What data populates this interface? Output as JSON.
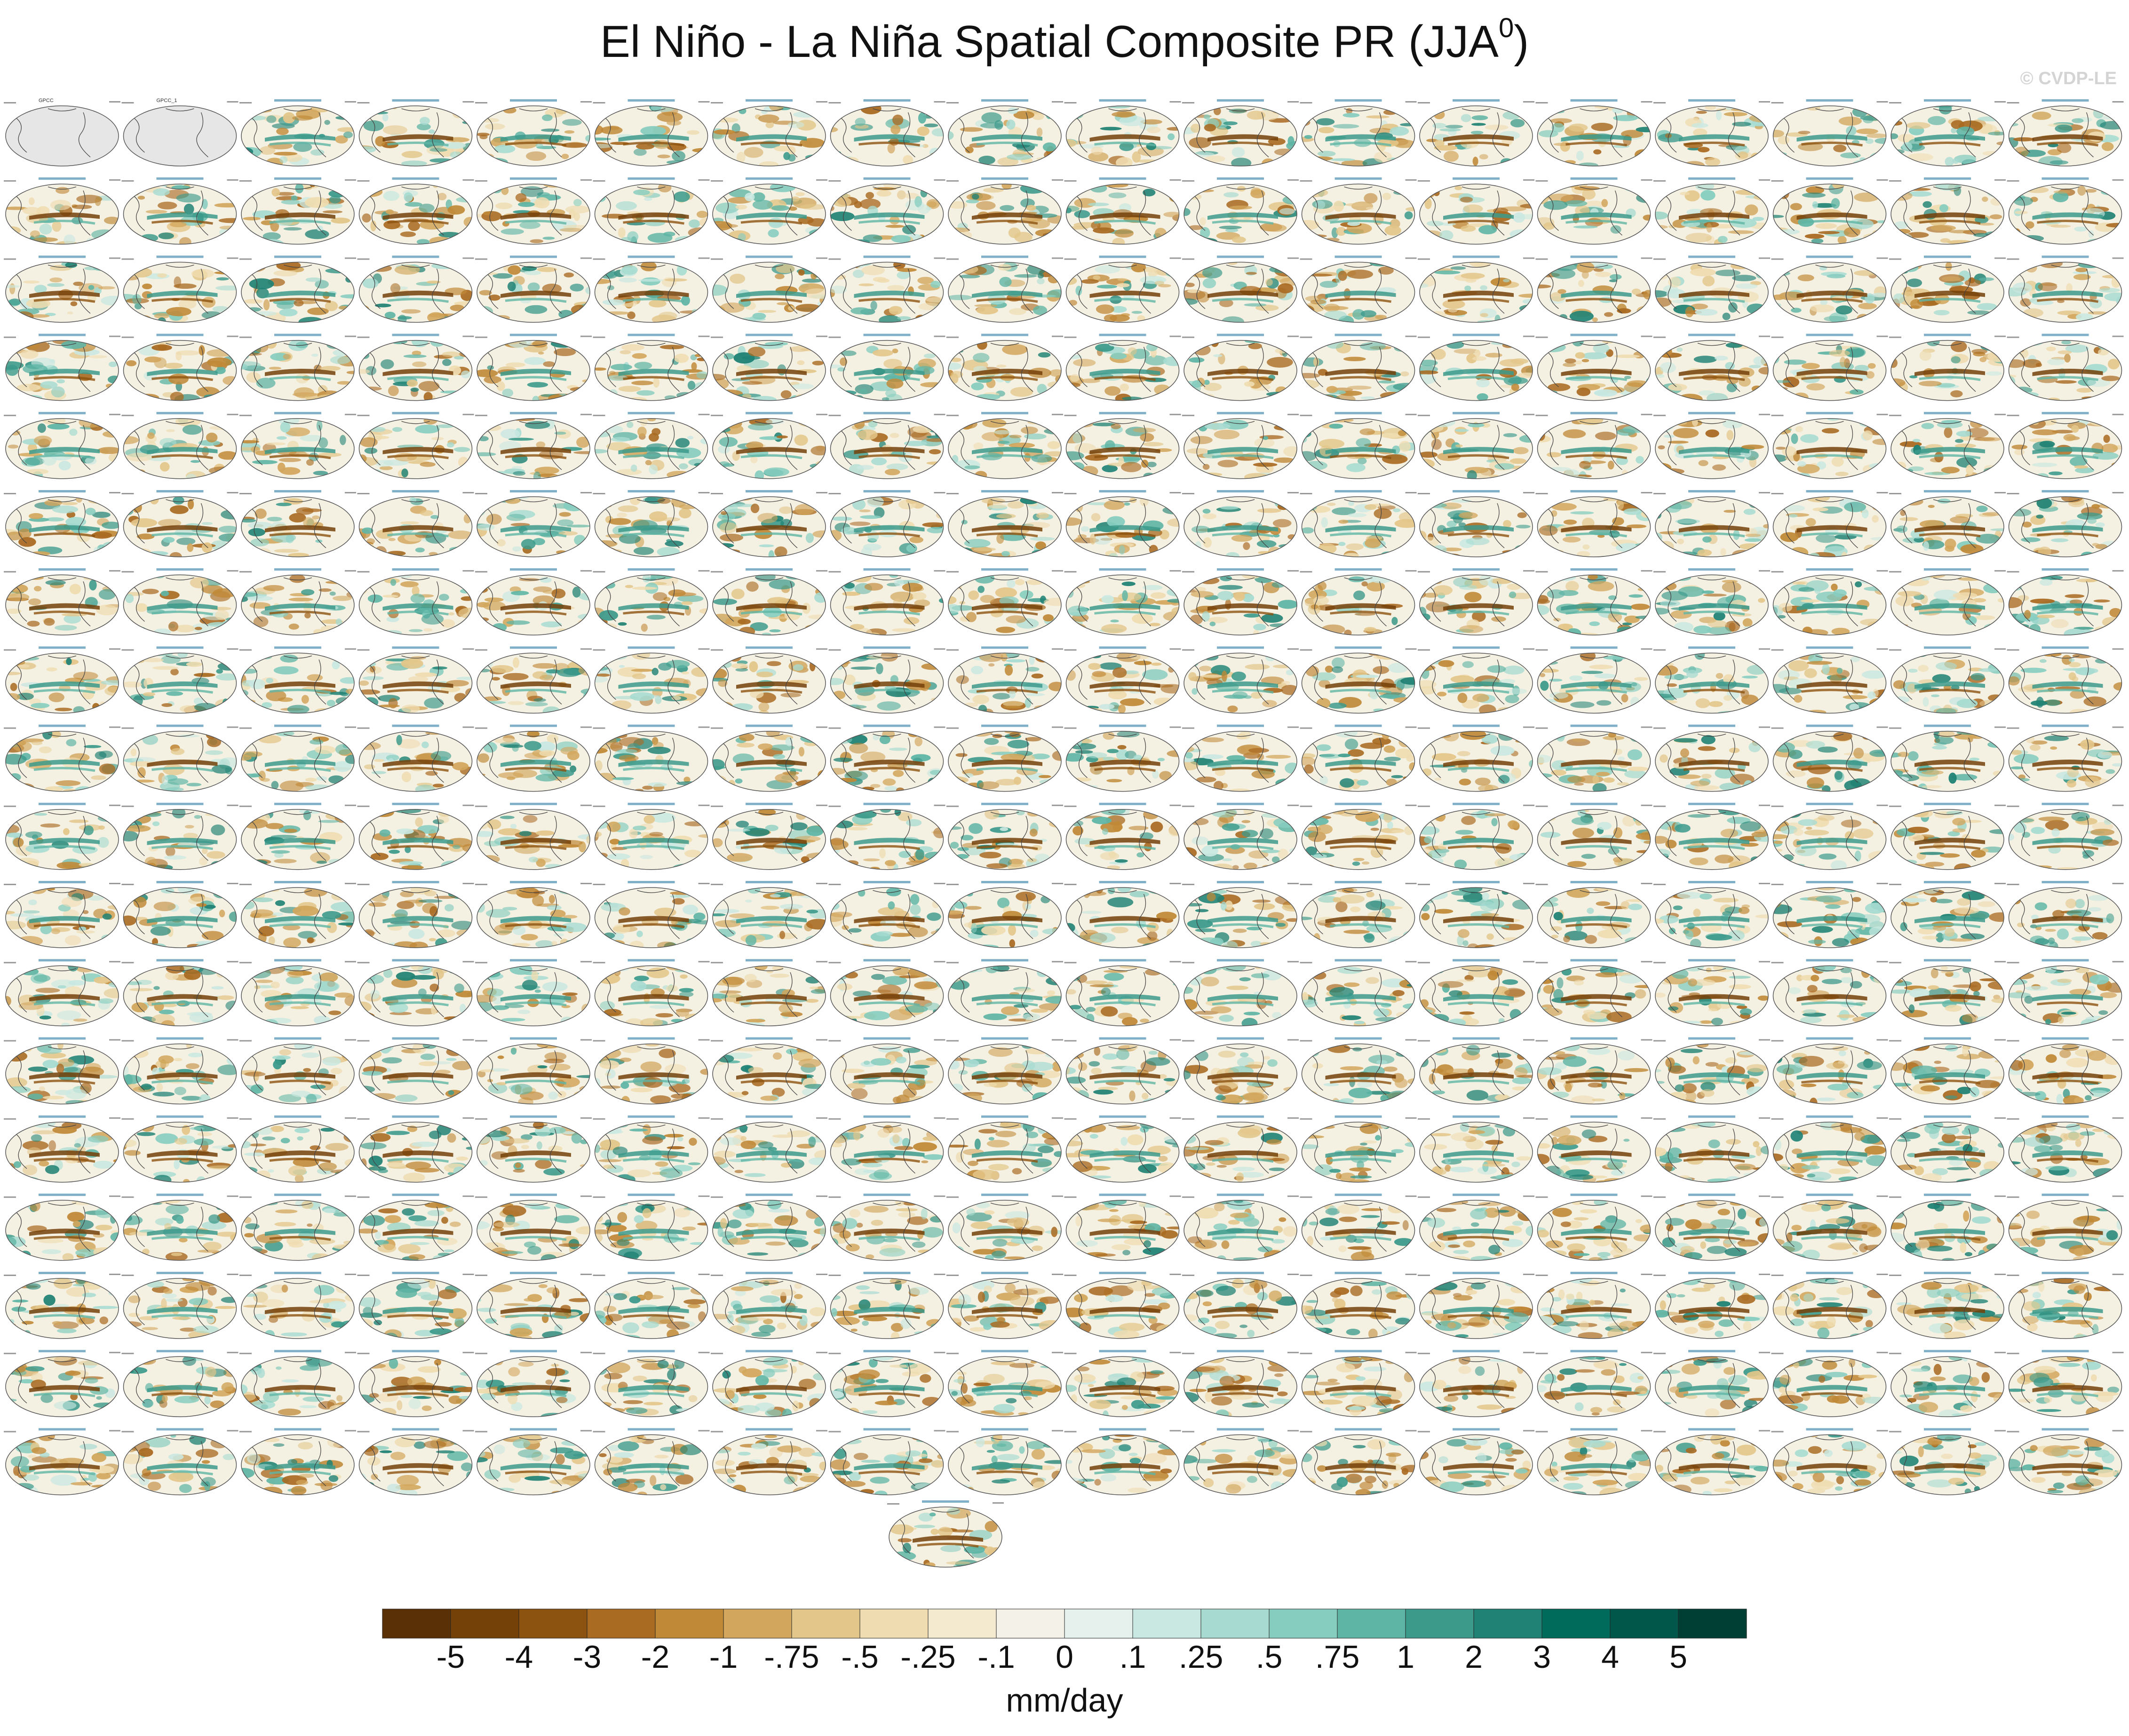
{
  "page": {
    "title_main": "El Niño - La Niña Spatial Composite PR (JJA",
    "title_sup": "0",
    "title_close": ")",
    "watermark": "© CVDP-LE"
  },
  "chart_data": {
    "type": "heatmap",
    "title": "El Niño - La Niña Spatial Composite PR (JJA0)",
    "grid": {
      "rows": 18,
      "cols": 18,
      "extra_panels_last_row": 1
    },
    "panel_labels_row1": [
      "GPCC",
      "GPCC_1"
    ],
    "colorbar": {
      "unit_label": "mm/day",
      "tick_labels": [
        "-5",
        "-4",
        "-3",
        "-2",
        "-1",
        "-.75",
        "-.5",
        "-.25",
        "-.1",
        "0",
        ".1",
        ".25",
        ".5",
        ".75",
        "1",
        "2",
        "3",
        "4",
        "5"
      ],
      "colors": [
        "#5a3106",
        "#744109",
        "#8c520f",
        "#a96a21",
        "#c08937",
        "#d2a65c",
        "#e3c689",
        "#efdcb0",
        "#f4ead0",
        "#f3f1e8",
        "#e6f1ee",
        "#c9e8e1",
        "#a7dbd1",
        "#86cdbf",
        "#5fb5a5",
        "#3c9a8b",
        "#1f8274",
        "#006a5b",
        "#00574a",
        "#003f33"
      ]
    }
  }
}
